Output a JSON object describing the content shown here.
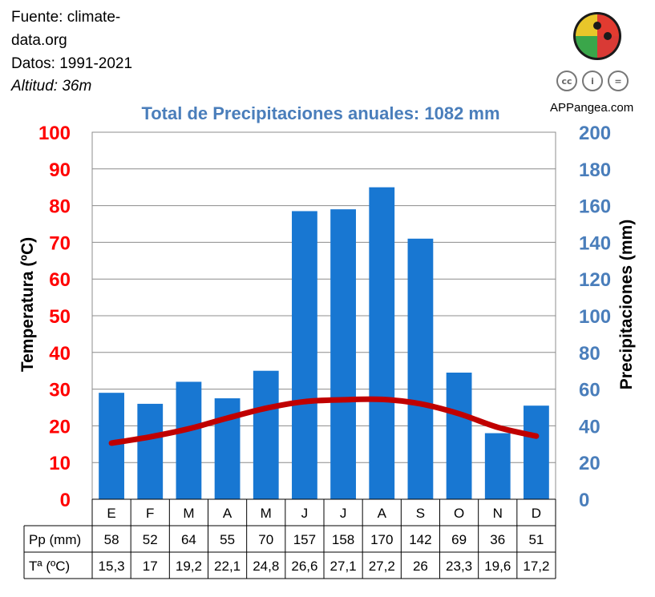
{
  "info": {
    "source_line1": "Fuente: climate-",
    "source_line2": "data.org",
    "period": "Datos: 1991-2021",
    "altitude": "Altitud: 36m"
  },
  "brand": {
    "name": "APPangea.com",
    "license_icons": [
      "cc-icon",
      "attribution-icon",
      "noderivs-icon"
    ],
    "license_glyphs": [
      "cc",
      "i",
      "="
    ],
    "logo_icon": "puzzle-globe-icon"
  },
  "colors": {
    "bars": "#1877D2",
    "temp_line": "#C00000",
    "left_axis": "#FF0000",
    "right_axis": "#4A7EBB",
    "title": "#4A7EBB"
  },
  "chart_data": {
    "type": "bar",
    "title": "Total de Precipitaciones anuales: 1082 mm",
    "categories": [
      "E",
      "F",
      "M",
      "A",
      "M",
      "J",
      "J",
      "A",
      "S",
      "O",
      "N",
      "D"
    ],
    "series": [
      {
        "name": "Pp (mm)",
        "type": "bar",
        "axis": "right",
        "values": [
          58,
          52,
          64,
          55,
          70,
          157,
          158,
          170,
          142,
          69,
          36,
          51
        ],
        "labels": [
          "58",
          "52",
          "64",
          "55",
          "70",
          "157",
          "158",
          "170",
          "142",
          "69",
          "36",
          "51"
        ]
      },
      {
        "name": "Tª (ºC)",
        "type": "line",
        "axis": "left",
        "values": [
          15.3,
          17,
          19.2,
          22.1,
          24.8,
          26.6,
          27.1,
          27.2,
          26,
          23.3,
          19.6,
          17.2
        ],
        "labels": [
          "15,3",
          "17",
          "19,2",
          "22,1",
          "24,8",
          "26,6",
          "27,1",
          "27,2",
          "26",
          "23,3",
          "19,6",
          "17,2"
        ]
      }
    ],
    "y_left": {
      "label": "Temperatura (ºC)",
      "ylim": [
        0,
        100
      ],
      "ticks": [
        "0",
        "10",
        "20",
        "30",
        "40",
        "50",
        "60",
        "70",
        "80",
        "90",
        "100"
      ]
    },
    "y_right": {
      "label": "Precipitaciones (mm)",
      "ylim": [
        0,
        200
      ],
      "ticks": [
        "0",
        "20",
        "40",
        "60",
        "80",
        "100",
        "120",
        "140",
        "160",
        "180",
        "200"
      ]
    },
    "grid": true
  }
}
